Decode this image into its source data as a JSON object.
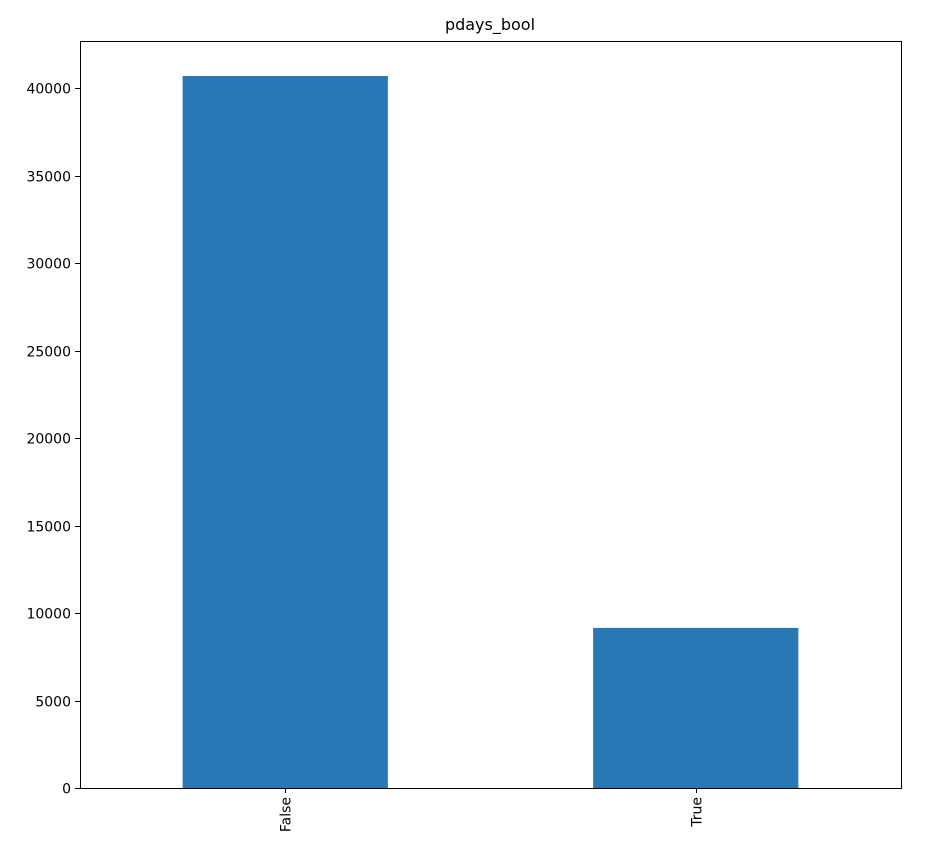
{
  "chart_data": {
    "type": "bar",
    "title": "pdays_bool",
    "xlabel": "",
    "ylabel": "",
    "categories": [
      "False",
      "True"
    ],
    "values": [
      40700,
      9150
    ],
    "ylim": [
      0,
      42700
    ],
    "yticks": [
      0,
      5000,
      10000,
      15000,
      20000,
      25000,
      30000,
      35000,
      40000
    ],
    "grid": false,
    "legend": "none",
    "colors": {
      "bar": "#2878b5",
      "axes": "#000000",
      "background": "#ffffff"
    }
  }
}
